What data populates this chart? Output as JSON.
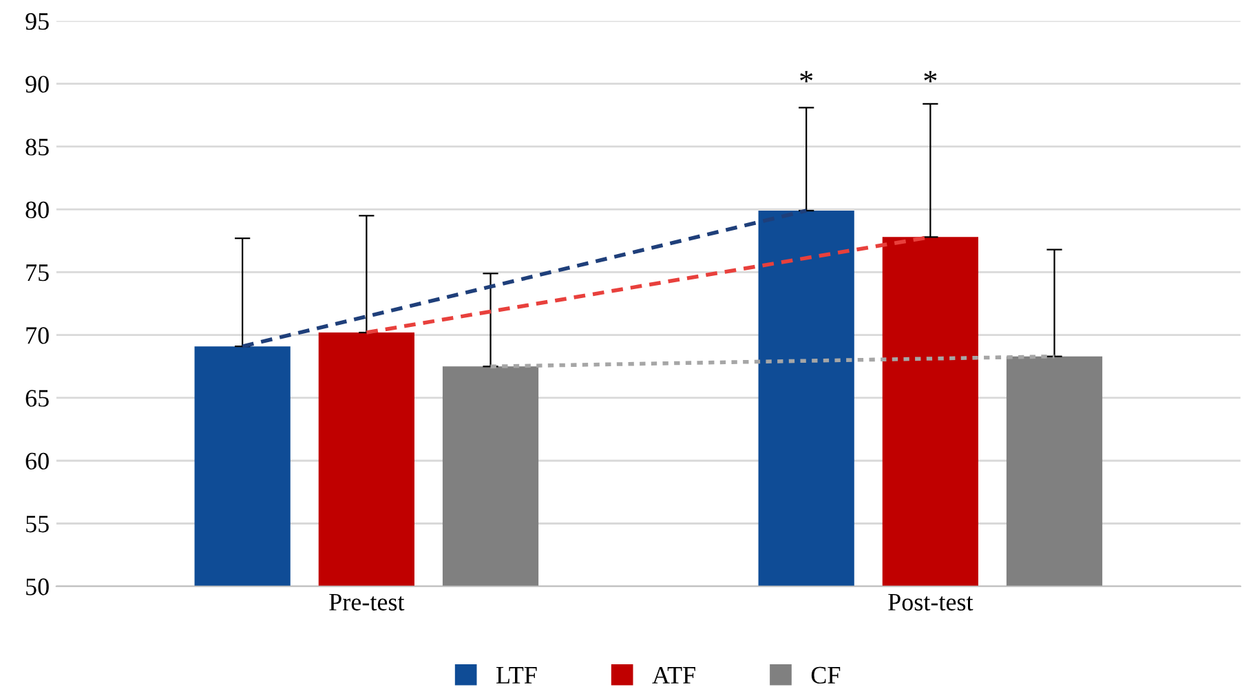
{
  "chart_data": {
    "type": "bar",
    "categories": [
      "Pre-test",
      "Post-test"
    ],
    "series": [
      {
        "name": "LTF",
        "color": "#0f4c96",
        "values": [
          69.1,
          79.9
        ],
        "errors": [
          [
            69.1,
            77.7
          ],
          [
            79.9,
            88.1
          ]
        ]
      },
      {
        "name": "ATF",
        "color": "#c00000",
        "values": [
          70.2,
          77.8
        ],
        "errors": [
          [
            70.2,
            79.5
          ],
          [
            77.8,
            88.4
          ]
        ]
      },
      {
        "name": "CF",
        "color": "#808080",
        "values": [
          67.5,
          68.3
        ],
        "errors": [
          [
            67.5,
            74.9
          ],
          [
            68.3,
            76.8
          ]
        ]
      },
      {
        "type": "line",
        "color": "#1f3f7a",
        "line_style": "dashed",
        "values": [
          69.1,
          79.9
        ]
      },
      {
        "type": "line",
        "color": "#e8403c",
        "line_style": "dashed",
        "values": [
          70.2,
          77.8
        ]
      },
      {
        "type": "line",
        "color": "#a6a6a6",
        "line_style": "dotted",
        "values": [
          67.5,
          68.3
        ]
      }
    ],
    "annotations": [
      "*",
      "*"
    ],
    "ylim": [
      50,
      95
    ],
    "yticks": [
      50,
      55,
      60,
      65,
      70,
      75,
      80,
      85,
      90,
      95
    ],
    "grid": "y",
    "legend": "bottom"
  }
}
